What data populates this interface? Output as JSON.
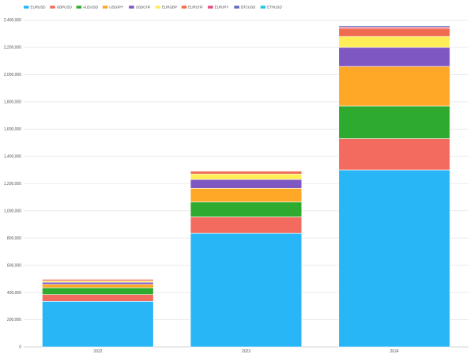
{
  "chart_data": {
    "type": "bar",
    "stacked": true,
    "title": "",
    "xlabel": "",
    "ylabel": "",
    "categories": [
      "2022",
      "2023",
      "2024"
    ],
    "ylim": [
      0,
      2400000
    ],
    "yticks": [
      0,
      200000,
      400000,
      600000,
      800000,
      1000000,
      1200000,
      1400000,
      1600000,
      1800000,
      2000000,
      2200000,
      2400000
    ],
    "ytick_labels": [
      "0",
      "200,000",
      "400,000",
      "600,000",
      "800,000",
      "1,000,000",
      "1,200,000",
      "1,400,000",
      "1,600,000",
      "1,800,000",
      "2,000,000",
      "2,200,000",
      "2,400,000"
    ],
    "grid": true,
    "legend_position": "top-left",
    "series": [
      {
        "name": "EURUSD",
        "color": "#29b6f6",
        "values": [
          335000,
          835000,
          1300000
        ]
      },
      {
        "name": "GBPUSD",
        "color": "#f26b5e",
        "values": [
          50000,
          120000,
          230000
        ]
      },
      {
        "name": "AUDUSD",
        "color": "#2eab2e",
        "values": [
          50000,
          110000,
          240000
        ]
      },
      {
        "name": "USDJPY",
        "color": "#ffa726",
        "values": [
          25000,
          100000,
          290000
        ]
      },
      {
        "name": "USDCHF",
        "color": "#7e57c2",
        "values": [
          15000,
          65000,
          140000
        ]
      },
      {
        "name": "EURGBP",
        "color": "#ffee58",
        "values": [
          10000,
          40000,
          80000
        ]
      },
      {
        "name": "EURCHF",
        "color": "#ef6c50",
        "values": [
          12000,
          20000,
          60000
        ]
      },
      {
        "name": "EURJPY",
        "color": "#e84a7a",
        "values": [
          3000,
          5000,
          10000
        ]
      },
      {
        "name": "BTCUSD",
        "color": "#5c6bc0",
        "values": [
          2000,
          3000,
          8000
        ]
      },
      {
        "name": "ETHUSD",
        "color": "#26c6da",
        "values": [
          1000,
          2000,
          4000
        ]
      }
    ]
  }
}
